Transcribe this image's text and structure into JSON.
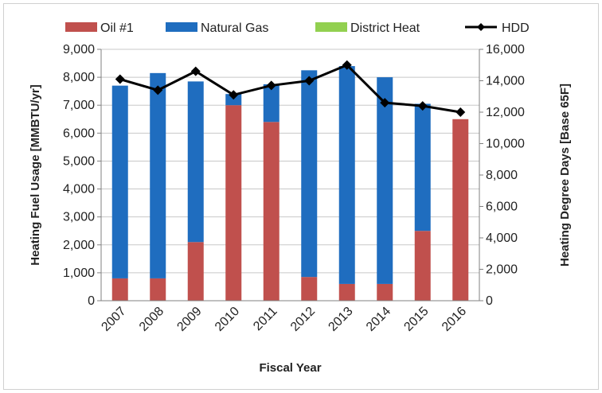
{
  "chart_data": {
    "type": "bar",
    "stacked": true,
    "categories": [
      "2007",
      "2008",
      "2009",
      "2010",
      "2011",
      "2012",
      "2013",
      "2014",
      "2015",
      "2016"
    ],
    "series": [
      {
        "name": "Oil #1",
        "axis": "left",
        "color": "#c0504d",
        "values": [
          800,
          800,
          2100,
          7000,
          6400,
          850,
          600,
          600,
          2500,
          6500
        ]
      },
      {
        "name": "Natural Gas",
        "axis": "left",
        "color": "#1f6dbf",
        "values": [
          6900,
          7350,
          5750,
          400,
          1350,
          7400,
          7800,
          7400,
          4550,
          0
        ]
      },
      {
        "name": "District Heat",
        "axis": "left",
        "color": "#92d050",
        "values": [
          0,
          0,
          0,
          0,
          0,
          0,
          0,
          0,
          0,
          0
        ]
      },
      {
        "name": "HDD",
        "type": "line",
        "axis": "right",
        "color": "#000000",
        "values": [
          14100,
          13400,
          14600,
          13100,
          13700,
          14000,
          15000,
          12600,
          12400,
          12000
        ]
      }
    ],
    "xlabel": "Fiscal Year",
    "ylabel": "Heating Fuel Usage [MMBTU/yr]",
    "y2label": "Heating Degree Days [Base 65F]",
    "ylim": [
      0,
      9000
    ],
    "y2lim": [
      0,
      16000
    ],
    "yticks": [
      "0",
      "1,000",
      "2,000",
      "3,000",
      "4,000",
      "5,000",
      "6,000",
      "7,000",
      "8,000",
      "9,000"
    ],
    "y2ticks": [
      "0",
      "2,000",
      "4,000",
      "6,000",
      "8,000",
      "10,000",
      "12,000",
      "14,000",
      "16,000"
    ],
    "grid": true,
    "legend_position": "top"
  }
}
